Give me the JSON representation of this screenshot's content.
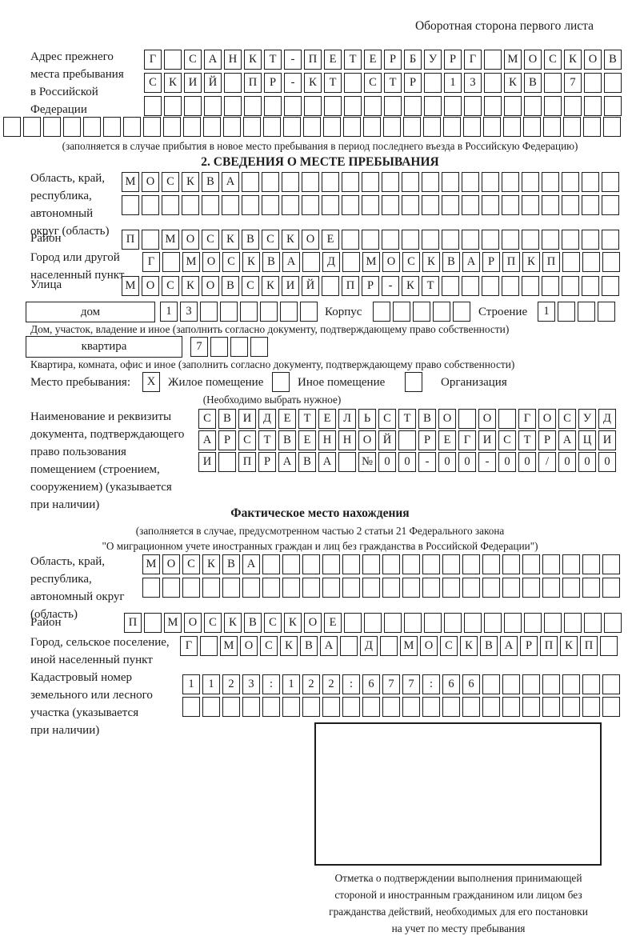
{
  "colors": {
    "ink": "#1c1c1c",
    "paper": "#ffffff"
  },
  "page_header": "Оборотная сторона первого листа",
  "prev_address": {
    "label": [
      "Адрес прежнего",
      "места пребывания",
      "в Российской",
      "Федерации"
    ],
    "row1": {
      "text": "Г САНКТ-ПЕТЕРБУРГ МОСКОВ",
      "count": 24
    },
    "row2": {
      "text": "СКИЙ ПР-КТ СТР 13 КВ 7",
      "count": 24
    },
    "row3": {
      "text": "",
      "count": 24
    },
    "row4": {
      "text": "",
      "count": 31
    },
    "note": "(заполняется в случае прибытия в новое место пребывания в период последнего въезда в Российскую Федерацию)"
  },
  "section2": {
    "title": "2. СВЕДЕНИЯ О МЕСТЕ ПРЕБЫВАНИЯ",
    "region": {
      "label": [
        "Область, край,",
        "республика,",
        "автономный",
        "округ (область)"
      ],
      "row1": {
        "text": "МОСКВА",
        "count": 25
      },
      "row2": {
        "text": "",
        "count": 25
      }
    },
    "district": {
      "label": "Район",
      "row": {
        "text": "П МОСКВСКОЕ",
        "count": 25
      }
    },
    "city": {
      "label": [
        "Город или другой",
        "населенный пункт"
      ],
      "row": {
        "text": "Г МОСКВА Д МОСКВАРПКП",
        "count": 24
      }
    },
    "street": {
      "label": "Улица",
      "row": {
        "text": "МОСКОВСКИЙ ПР-КТ",
        "count": 25
      }
    },
    "house": {
      "field_label": "дом",
      "row": {
        "text": "13",
        "count": 8
      },
      "korpus_label": "Корпус",
      "korpus_row": {
        "text": "",
        "count": 5
      },
      "stroenie_label": "Строение",
      "stroenie_row": {
        "text": "1",
        "count": 4
      },
      "caption": "Дом, участок, владение и иное (заполнить согласно документу, подтверждающему право собственности)"
    },
    "apartment": {
      "field_label": "квартира",
      "row": {
        "text": "7",
        "count": 4
      },
      "caption": "Квартира, комната, офис и иное (заполнить согласно документу, подтверждающему право собственности)"
    },
    "stay_type": {
      "label": "Место пребывания:",
      "options": [
        {
          "label": "Жилое помещение",
          "mark": "X"
        },
        {
          "label": "Иное помещение",
          "mark": ""
        },
        {
          "label": "Организация",
          "mark": ""
        }
      ],
      "note": "(Необходимо выбрать нужное)"
    },
    "document": {
      "label": [
        "Наименование и реквизиты",
        "документа, подтверждающего",
        "право пользования",
        "помещением (строением,",
        "сооружением) (указывается",
        "при наличии)"
      ],
      "row1": {
        "text": "СВИДЕТЕЛЬСТВО О ГОСУД",
        "count": 21
      },
      "row2": {
        "text": "АРСТВЕННОЙ РЕГИСТРАЦИ",
        "count": 21
      },
      "row3": {
        "text": "И ПРАВА №00-00-00/000",
        "count": 21
      }
    }
  },
  "actual_location": {
    "title": "Фактическое место нахождения",
    "note": [
      "(заполняется в случае, предусмотренном частью 2 статьи 21 Федерального закона",
      "\"О миграционном учете иностранных граждан и лиц без гражданства в Российской Федерации\")"
    ],
    "region": {
      "label": [
        "Область, край,",
        "республика,",
        "автономный округ",
        "(область)"
      ],
      "row1": {
        "text": "МОСКВА",
        "count": 24
      },
      "row2": {
        "text": "",
        "count": 24
      }
    },
    "district": {
      "label": "Район",
      "row": {
        "text": "П МОСКВСКОЕ",
        "count": 25
      }
    },
    "city": {
      "label": [
        "Город, сельское поселение,",
        "иной населенный пункт"
      ],
      "row": {
        "text": "Г МОСКВА Д МОСКВАРПКП",
        "count": 22
      }
    },
    "cadastre": {
      "label": [
        "Кадастровый номер",
        "земельного или лесного",
        "участка (указывается",
        "при наличии)"
      ],
      "row1": {
        "text": "1123:122:677:66",
        "count": 22
      },
      "row2": {
        "text": "",
        "count": 22
      }
    },
    "stamp_box_caption": [
      "Отметка о подтверждении выполнения принимающей",
      "стороной и иностранным гражданином или лицом без",
      "гражданства действий, необходимых для его постановки",
      "на учет по месту пребывания"
    ]
  }
}
